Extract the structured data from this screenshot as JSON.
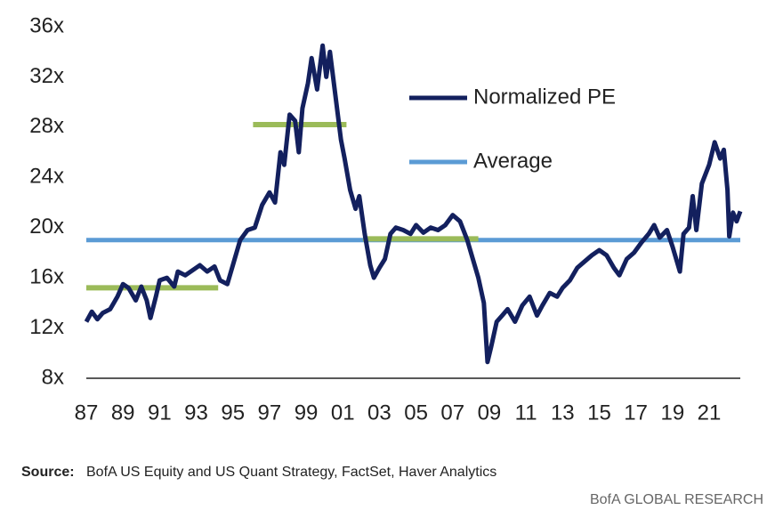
{
  "chart_data": {
    "type": "line",
    "xlim": [
      1987,
      2022.7
    ],
    "ylim": [
      8,
      36
    ],
    "xticks": [
      {
        "value": 1987,
        "label": "87"
      },
      {
        "value": 1989,
        "label": "89"
      },
      {
        "value": 1991,
        "label": "91"
      },
      {
        "value": 1993,
        "label": "93"
      },
      {
        "value": 1995,
        "label": "95"
      },
      {
        "value": 1997,
        "label": "97"
      },
      {
        "value": 1999,
        "label": "99"
      },
      {
        "value": 2001,
        "label": "01"
      },
      {
        "value": 2003,
        "label": "03"
      },
      {
        "value": 2005,
        "label": "05"
      },
      {
        "value": 2007,
        "label": "07"
      },
      {
        "value": 2009,
        "label": "09"
      },
      {
        "value": 2011,
        "label": "11"
      },
      {
        "value": 2013,
        "label": "13"
      },
      {
        "value": 2015,
        "label": "15"
      },
      {
        "value": 2017,
        "label": "17"
      },
      {
        "value": 2019,
        "label": "19"
      },
      {
        "value": 2021,
        "label": "21"
      }
    ],
    "yticks": [
      {
        "value": 8,
        "label": "8x"
      },
      {
        "value": 12,
        "label": "12x"
      },
      {
        "value": 16,
        "label": "16x"
      },
      {
        "value": 20,
        "label": "20x"
      },
      {
        "value": 24,
        "label": "24x"
      },
      {
        "value": 28,
        "label": "28x"
      },
      {
        "value": 32,
        "label": "32x"
      },
      {
        "value": 36,
        "label": "36x"
      }
    ],
    "legend": "upper right",
    "series": [
      {
        "name": "Normalized PE",
        "color": "#13205e",
        "x": [
          1987.0,
          1987.3,
          1987.6,
          1987.9,
          1988.3,
          1988.7,
          1989.0,
          1989.3,
          1989.7,
          1990.0,
          1990.3,
          1990.5,
          1990.8,
          1991.0,
          1991.4,
          1991.8,
          1992.0,
          1992.4,
          1992.8,
          1993.2,
          1993.6,
          1994.0,
          1994.3,
          1994.7,
          1995.0,
          1995.4,
          1995.8,
          1996.2,
          1996.6,
          1997.0,
          1997.3,
          1997.6,
          1997.8,
          1998.1,
          1998.4,
          1998.6,
          1998.8,
          1999.1,
          1999.3,
          1999.6,
          1999.9,
          2000.1,
          2000.3,
          2000.6,
          2000.9,
          2001.1,
          2001.4,
          2001.7,
          2001.9,
          2002.2,
          2002.5,
          2002.7,
          2003.0,
          2003.3,
          2003.6,
          2003.9,
          2004.3,
          2004.7,
          2005.0,
          2005.4,
          2005.8,
          2006.2,
          2006.6,
          2007.0,
          2007.4,
          2007.8,
          2008.1,
          2008.4,
          2008.7,
          2008.9,
          2009.1,
          2009.4,
          2009.7,
          2010.0,
          2010.4,
          2010.8,
          2011.2,
          2011.6,
          2011.9,
          2012.3,
          2012.7,
          2013.0,
          2013.4,
          2013.8,
          2014.2,
          2014.6,
          2015.0,
          2015.4,
          2015.8,
          2016.1,
          2016.5,
          2016.9,
          2017.3,
          2017.7,
          2018.0,
          2018.3,
          2018.7,
          2019.0,
          2019.4,
          2019.6,
          2019.9,
          2020.1,
          2020.3,
          2020.6,
          2021.0,
          2021.3,
          2021.6,
          2021.8,
          2022.0,
          2022.1,
          2022.3,
          2022.5,
          2022.7
        ],
        "values": [
          12.5,
          13.3,
          12.7,
          13.2,
          13.5,
          14.5,
          15.5,
          15.2,
          14.2,
          15.3,
          14.2,
          12.8,
          14.5,
          15.8,
          16.0,
          15.3,
          16.5,
          16.2,
          16.6,
          17.0,
          16.5,
          16.9,
          15.8,
          15.5,
          17.0,
          19.0,
          19.8,
          20.0,
          21.8,
          22.8,
          22.0,
          26.0,
          25.0,
          29.0,
          28.5,
          26.0,
          29.5,
          31.5,
          33.5,
          31.0,
          34.5,
          32.0,
          34.0,
          30.5,
          27.0,
          25.5,
          23.0,
          21.5,
          22.5,
          19.5,
          17.0,
          16.0,
          16.8,
          17.5,
          19.5,
          20.0,
          19.8,
          19.5,
          20.2,
          19.6,
          20.0,
          19.8,
          20.2,
          21.0,
          20.5,
          19.0,
          17.5,
          16.0,
          14.0,
          9.3,
          10.5,
          12.5,
          13.0,
          13.5,
          12.5,
          13.8,
          14.5,
          13.0,
          13.8,
          14.8,
          14.5,
          15.2,
          15.8,
          16.8,
          17.3,
          17.8,
          18.2,
          17.8,
          16.8,
          16.2,
          17.5,
          18.0,
          18.8,
          19.5,
          20.2,
          19.2,
          19.8,
          18.5,
          16.5,
          19.5,
          20.0,
          22.5,
          19.8,
          23.5,
          25.0,
          26.8,
          25.5,
          26.2,
          23.0,
          19.3,
          21.2,
          20.5,
          21.3
        ]
      },
      {
        "name": "Average",
        "color": "#5b9bd5",
        "x": [
          1987,
          2022.7
        ],
        "values": [
          19,
          19
        ]
      }
    ],
    "period_averages": [
      {
        "color": "#9bbb59",
        "x": [
          1987,
          1994.2
        ],
        "values": [
          15.2,
          15.2
        ]
      },
      {
        "color": "#9bbb59",
        "x": [
          1996.1,
          2001.2
        ],
        "values": [
          28.2,
          28.2
        ]
      },
      {
        "color": "#9bbb59",
        "x": [
          2002.1,
          2008.4
        ],
        "values": [
          19.1,
          19.1
        ]
      }
    ]
  },
  "source_label": "Source:",
  "source": "BofA US Equity and US Quant Strategy, FactSet, Haver Analytics",
  "footer": "BofA GLOBAL RESEARCH"
}
